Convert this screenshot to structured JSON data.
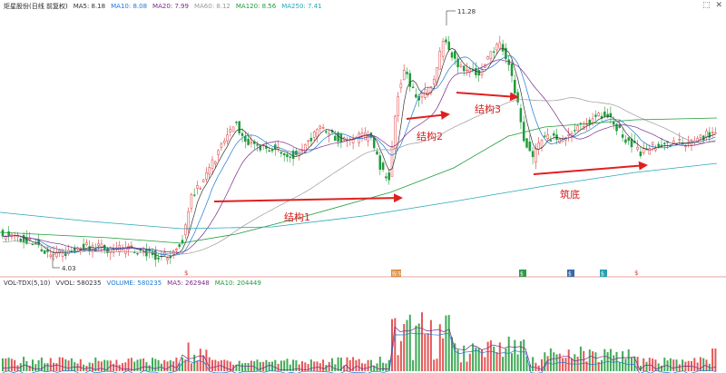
{
  "header": {
    "title": "炬星股份(日线 前复权)",
    "ma_items": [
      {
        "label": "MA5: 8.18",
        "color": "#333333"
      },
      {
        "label": "MA10: 8.08",
        "color": "#1e78d2"
      },
      {
        "label": "MA20: 7.99",
        "color": "#7a2a8a"
      },
      {
        "label": "MA60: 8.12",
        "color": "#9a9a9a"
      },
      {
        "label": "MA120: 8.56",
        "color": "#1f9b3a"
      },
      {
        "label": "MA250: 7.41",
        "color": "#29a6b8"
      }
    ]
  },
  "price_chart": {
    "high_label": "11.28",
    "low_label": "4.03",
    "annotations": [
      "结构1",
      "结构2",
      "结构3",
      "筑底"
    ],
    "event_markers": [
      "$",
      "股东",
      "$",
      "$",
      "$",
      "$"
    ],
    "colors": {
      "up": "#e03a3a",
      "down": "#1f9b3a",
      "arrow": "#e02020"
    }
  },
  "volume_panel": {
    "label": "VOL-TDX(5,10)",
    "items": [
      {
        "label": "VVOL: 580235",
        "color": "#333333"
      },
      {
        "label": "VOLUME: 580235",
        "color": "#1e78d2"
      },
      {
        "label": "MA5: 262948",
        "color": "#7a2a8a"
      },
      {
        "label": "MA10: 204449",
        "color": "#1f9b3a"
      }
    ]
  },
  "window_controls": [
    "⬚",
    "✕"
  ]
}
